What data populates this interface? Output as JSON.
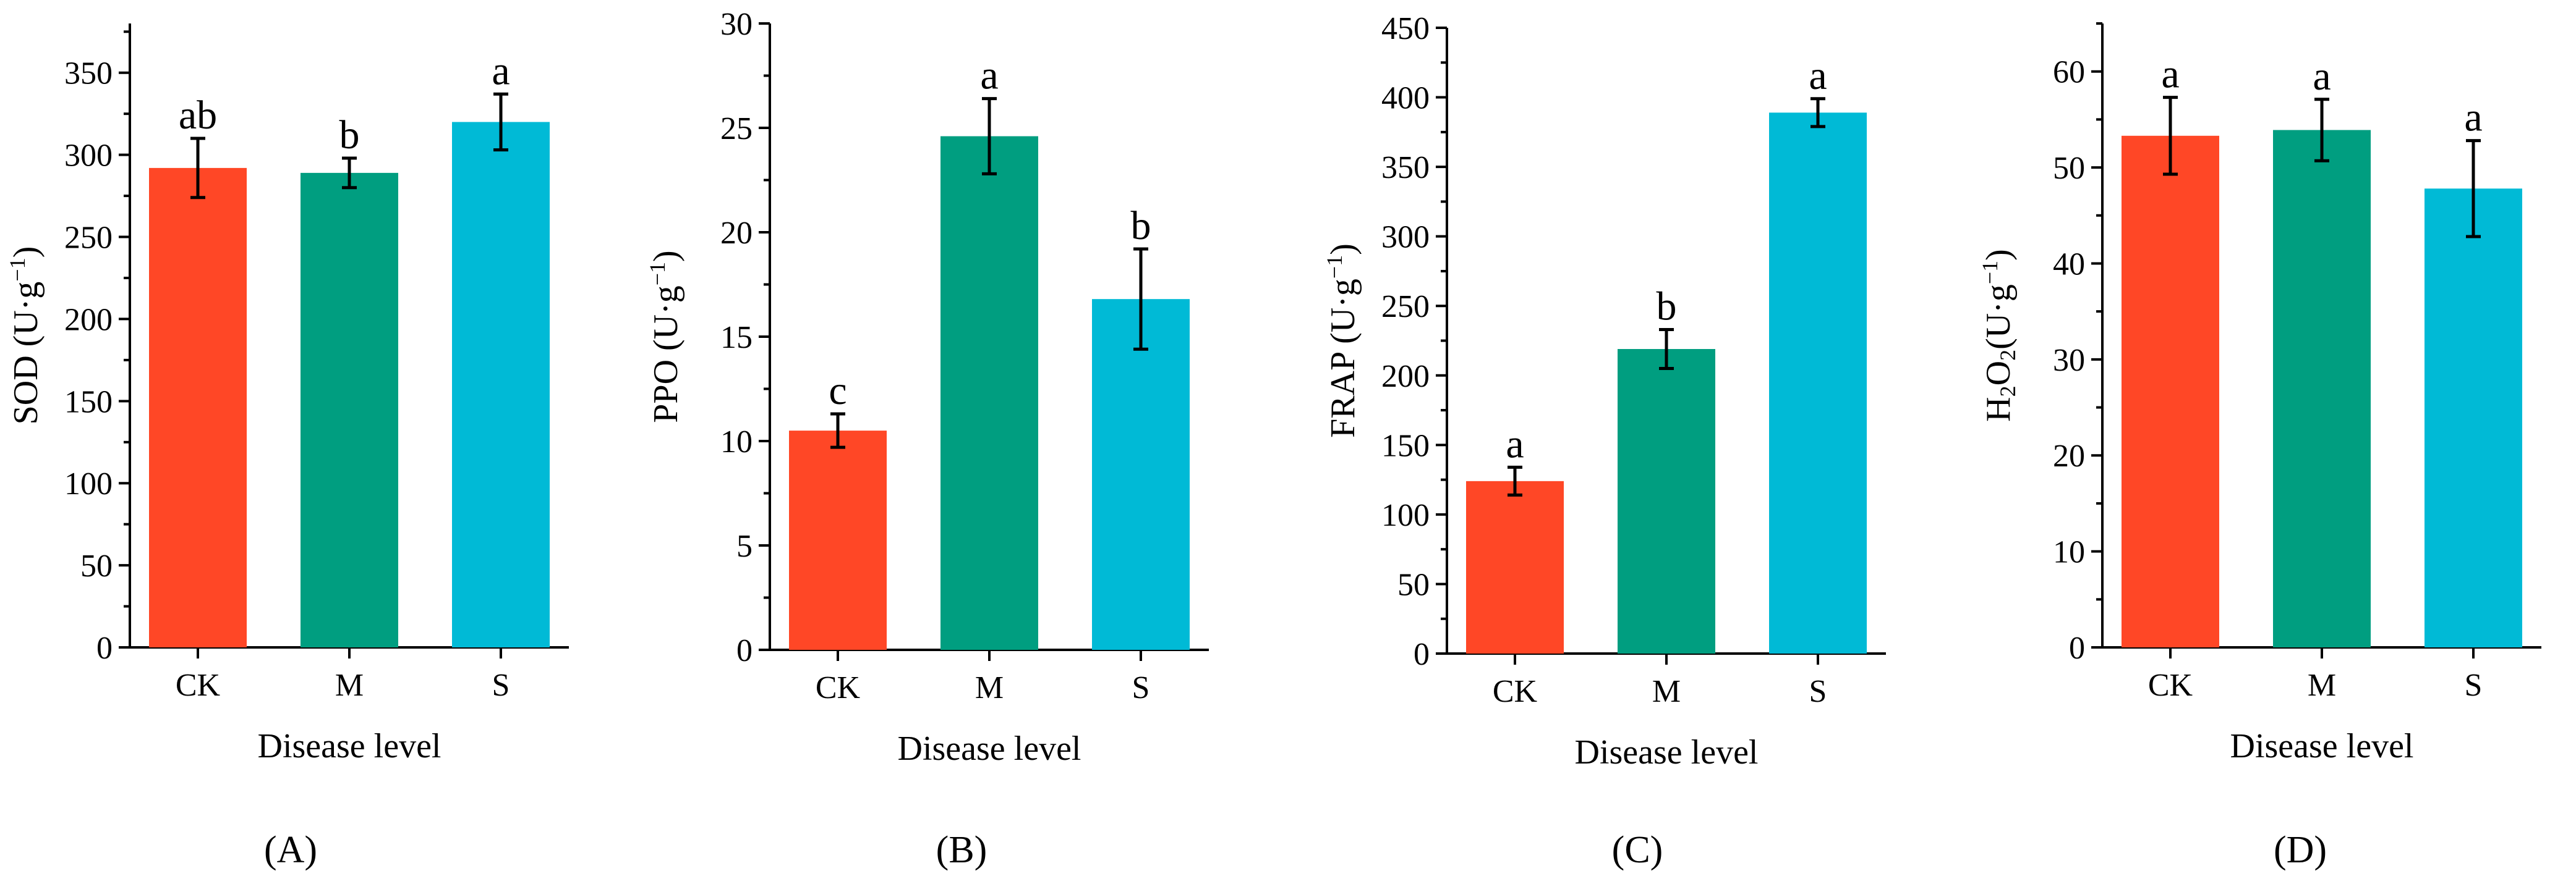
{
  "figure": {
    "colors": {
      "CK": "#FF4726",
      "M": "#009E80",
      "S": "#00BAD6"
    }
  },
  "chart_data": [
    {
      "type": "bar",
      "panel": "(A)",
      "title": "",
      "xlabel": "Disease level",
      "ylabel_main": "SOD (U·g",
      "ylabel_sup": "−1",
      "ylabel_tail": ")",
      "categories": [
        "CK",
        "M",
        "S"
      ],
      "values": [
        292,
        289,
        320
      ],
      "errors": [
        18,
        9,
        17
      ],
      "significance": [
        "ab",
        "b",
        "a"
      ],
      "ylim": [
        0,
        380
      ],
      "yticks": [
        0,
        50,
        100,
        150,
        200,
        250,
        300,
        350
      ]
    },
    {
      "type": "bar",
      "panel": "(B)",
      "title": "",
      "xlabel": "Disease level",
      "ylabel_main": "PPO (U·g",
      "ylabel_sup": "−1",
      "ylabel_tail": ")",
      "categories": [
        "CK",
        "M",
        "S"
      ],
      "values": [
        10.5,
        24.6,
        16.8
      ],
      "errors": [
        0.8,
        1.8,
        2.4
      ],
      "significance": [
        "c",
        "a",
        "b"
      ],
      "ylim": [
        0,
        30
      ],
      "yticks": [
        0,
        5,
        10,
        15,
        20,
        25,
        30
      ]
    },
    {
      "type": "bar",
      "panel": "(C)",
      "title": "",
      "xlabel": "Disease level",
      "ylabel_main": "FRAP (U·g",
      "ylabel_sup": "−1",
      "ylabel_tail": ")",
      "categories": [
        "CK",
        "M",
        "S"
      ],
      "values": [
        124,
        219,
        389
      ],
      "errors": [
        10,
        14,
        10
      ],
      "significance": [
        "a",
        "b",
        "a"
      ],
      "ylim": [
        0,
        450
      ],
      "yticks": [
        0,
        50,
        100,
        150,
        200,
        250,
        300,
        350,
        400,
        450
      ]
    },
    {
      "type": "bar",
      "panel": "(D)",
      "title": "",
      "xlabel": "Disease level",
      "ylabel_main": "H",
      "ylabel_sub1": "2",
      "ylabel_mid": "O",
      "ylabel_sub2": "2",
      "ylabel_rest": "(U·g",
      "ylabel_sup": "−1",
      "ylabel_tail": ")",
      "categories": [
        "CK",
        "M",
        "S"
      ],
      "values": [
        53.3,
        53.9,
        47.8
      ],
      "errors": [
        4.0,
        3.2,
        5.0
      ],
      "significance": [
        "a",
        "a",
        "a"
      ],
      "ylim": [
        0,
        65
      ],
      "yticks": [
        0,
        10,
        20,
        30,
        40,
        50,
        60
      ]
    }
  ]
}
